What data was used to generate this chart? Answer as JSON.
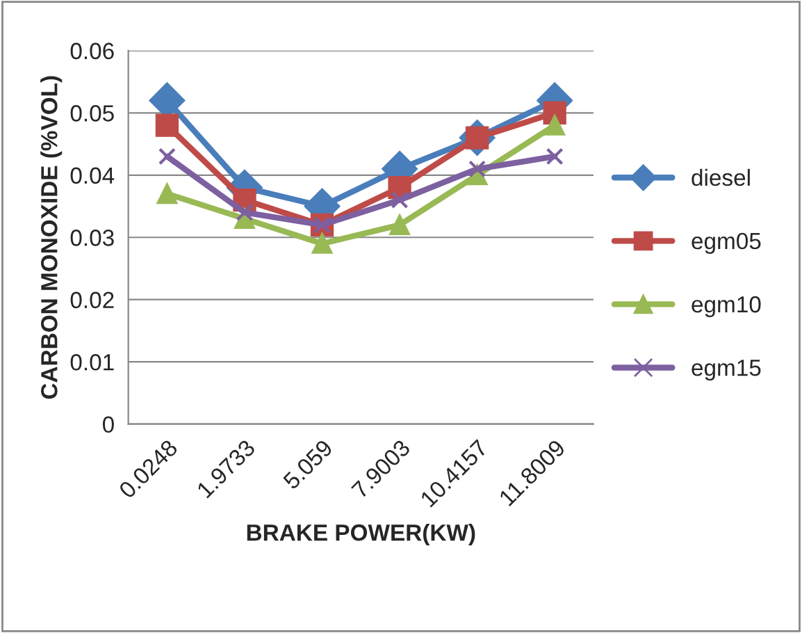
{
  "chart_data": {
    "type": "line",
    "xlabel": "BRAKE POWER(KW)",
    "ylabel": "CARBON MONOXIDE (%VOL)",
    "categories": [
      "0.0248",
      "1.9733",
      "5.059",
      "7.9003",
      "10.4157",
      "11.8009"
    ],
    "series": [
      {
        "name": "diesel",
        "color": "#4a7ebb",
        "marker": "diamond",
        "values": [
          0.052,
          0.038,
          0.035,
          0.041,
          0.046,
          0.052
        ]
      },
      {
        "name": "egm05",
        "color": "#be4b48",
        "marker": "square",
        "values": [
          0.048,
          0.036,
          0.032,
          0.038,
          0.046,
          0.05
        ]
      },
      {
        "name": "egm10",
        "color": "#98b954",
        "marker": "triangle",
        "values": [
          0.037,
          0.033,
          0.029,
          0.032,
          0.04,
          0.048
        ]
      },
      {
        "name": "egm15",
        "color": "#7d60a0",
        "marker": "cross",
        "values": [
          0.043,
          0.034,
          0.032,
          0.036,
          0.041,
          0.043
        ]
      }
    ],
    "ylim": [
      0,
      0.06
    ],
    "yticks": [
      0,
      0.01,
      0.02,
      0.03,
      0.04,
      0.05,
      0.06
    ],
    "grid": "y",
    "legend": "right"
  }
}
